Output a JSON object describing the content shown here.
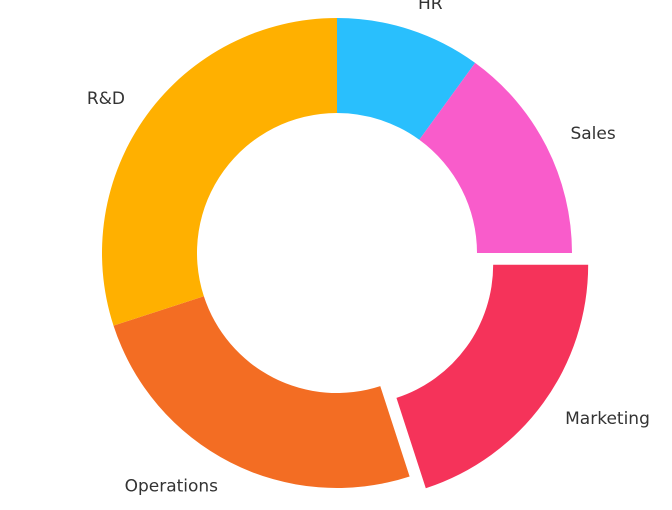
{
  "chart_data": {
    "type": "donut",
    "categories": [
      "HR",
      "Sales",
      "Marketing",
      "Operations",
      "R&D"
    ],
    "values": [
      10,
      15,
      20,
      25,
      30
    ],
    "colors": [
      "#29bffd",
      "#f95ccb",
      "#f5335a",
      "#f36d23",
      "#ffb000"
    ],
    "exploded": "Marketing"
  }
}
